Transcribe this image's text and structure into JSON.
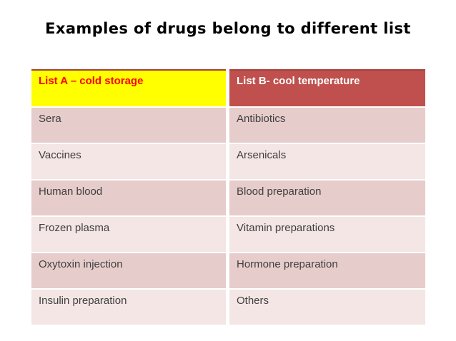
{
  "slide": {
    "title": "Examples of drugs belong to different list",
    "background_color": "#ffffff",
    "title_color": "#000000"
  },
  "table": {
    "columns": [
      {
        "header": "List A – cold storage",
        "header_bg": "#ffff00",
        "header_text_color": "#ff0000"
      },
      {
        "header": "List B- cool temperature",
        "header_bg": "#c0504d",
        "header_text_color": "#ffffff"
      }
    ],
    "rows": [
      [
        "Sera",
        "Antibiotics"
      ],
      [
        "Vaccines",
        "Arsenicals"
      ],
      [
        "Human blood",
        "Blood preparation"
      ],
      [
        "Frozen plasma",
        "Vitamin preparations"
      ],
      [
        "Oxytoxin injection",
        "Hormone preparation"
      ],
      [
        "Insulin preparation",
        "Others"
      ]
    ],
    "band_colors": [
      "#e6cccA",
      "#f3e6e4"
    ],
    "cell_text_color": "#3f3f3f",
    "header_top_border_color": "#a2423f"
  }
}
